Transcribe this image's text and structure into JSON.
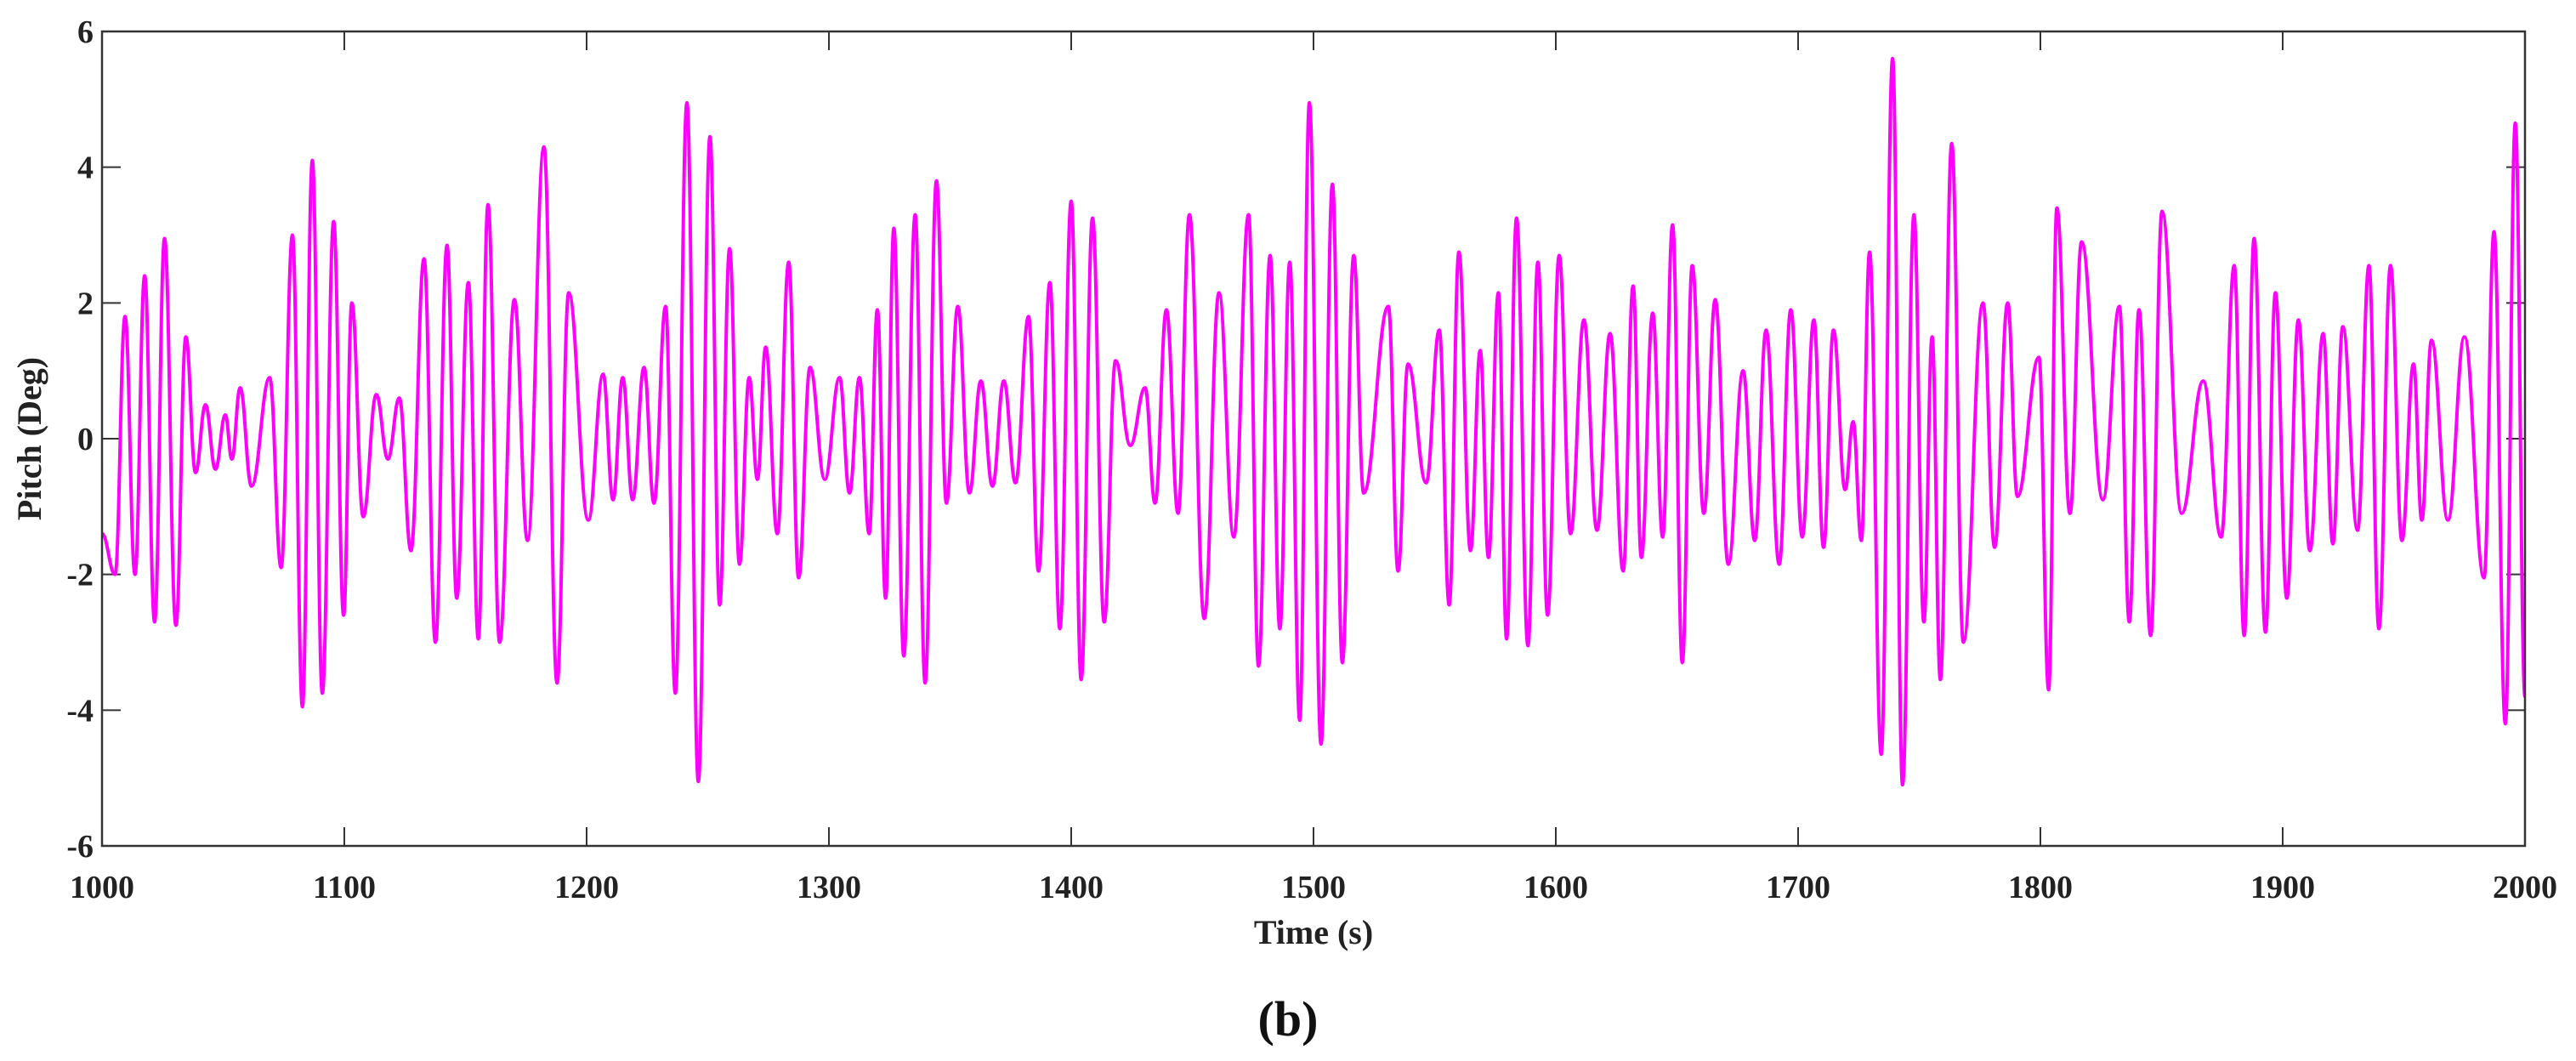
{
  "chart_data": {
    "type": "line",
    "xlabel": "Time (s)",
    "ylabel": "Pitch (Deg)",
    "caption": "(b)",
    "color": "#ff00ff",
    "xlim": [
      1000,
      2000
    ],
    "ylim": [
      -6,
      6
    ],
    "xticks": [
      1000,
      1100,
      1200,
      1300,
      1400,
      1500,
      1600,
      1700,
      1800,
      1900,
      2000
    ],
    "yticks": [
      -6,
      -4,
      -2,
      0,
      2,
      4,
      6
    ],
    "x": [
      1000,
      1005.4,
      1009.5,
      1013.6,
      1017.6,
      1021.7,
      1025.8,
      1030.5,
      1034.6,
      1038.6,
      1042.7,
      1046.8,
      1050.9,
      1053.6,
      1057,
      1061.7,
      1069.2,
      1073.9,
      1078.6,
      1082.7,
      1086.8,
      1090.9,
      1095.6,
      1099.7,
      1103.1,
      1107.8,
      1113.2,
      1118,
      1122.7,
      1127.5,
      1132.9,
      1137.6,
      1142.4,
      1146.4,
      1151.2,
      1155.3,
      1159.3,
      1164.1,
      1170.2,
      1175.6,
      1182.4,
      1187.8,
      1192.6,
      1200.7,
      1206.8,
      1210.9,
      1214.9,
      1219,
      1223.7,
      1227.8,
      1232.6,
      1236.6,
      1241.4,
      1246.1,
      1250.9,
      1254.9,
      1259,
      1263.1,
      1267.1,
      1270.5,
      1273.9,
      1278.7,
      1283.4,
      1287.5,
      1292.2,
      1298.3,
      1304.4,
      1308.5,
      1312.6,
      1316.6,
      1320,
      1323.4,
      1326.8,
      1330.9,
      1335.6,
      1339.7,
      1344.4,
      1348.5,
      1353.2,
      1358,
      1362.7,
      1367.5,
      1372.2,
      1377,
      1382.4,
      1386.5,
      1391.2,
      1395.3,
      1400,
      1404.1,
      1408.8,
      1413.6,
      1418.3,
      1424.4,
      1430.5,
      1434.6,
      1439.3,
      1444.1,
      1448.8,
      1454.9,
      1461,
      1467.1,
      1473.2,
      1477.3,
      1482.1,
      1486.1,
      1490.2,
      1494.3,
      1498.3,
      1503.1,
      1507.8,
      1511.9,
      1516.6,
      1520.7,
      1530.9,
      1534.9,
      1539,
      1546.5,
      1551.9,
      1556,
      1560,
      1564.8,
      1568.8,
      1572.2,
      1576.3,
      1579.7,
      1583.8,
      1588.5,
      1592.6,
      1596.6,
      1601.4,
      1606.1,
      1611.6,
      1617,
      1622.4,
      1627.8,
      1631.9,
      1635.3,
      1640,
      1644.1,
      1648.2,
      1652.2,
      1656.3,
      1661.1,
      1665.8,
      1671.2,
      1677.3,
      1682.1,
      1686.8,
      1692.2,
      1697,
      1701.7,
      1706.5,
      1710.5,
      1714.6,
      1719.4,
      1722.7,
      1726.1,
      1729.5,
      1734.3,
      1739,
      1743.1,
      1747.8,
      1751.9,
      1755.3,
      1758.7,
      1763.4,
      1768.2,
      1776.3,
      1781.1,
      1786.5,
      1790.5,
      1799.4,
      1803.4,
      1806.8,
      1812.2,
      1817,
      1825.8,
      1832.6,
      1836.7,
      1840.7,
      1845.5,
      1850.2,
      1858.3,
      1867.2,
      1874.6,
      1880,
      1884.1,
      1888.2,
      1892.9,
      1897,
      1901.7,
      1906.5,
      1911.2,
      1916.7,
      1920.7,
      1924.8,
      1930.9,
      1935.6,
      1939.7,
      1944.5,
      1949.2,
      1954,
      1957.4,
      1961.4,
      1968.2,
      1975,
      1983.1,
      1987.2,
      1991.9,
      1996,
      2000
    ],
    "values": [
      -1.4,
      -2.0,
      1.8,
      -2.0,
      2.4,
      -2.7,
      2.95,
      -2.75,
      1.5,
      -0.5,
      0.5,
      -0.45,
      0.35,
      -0.3,
      0.75,
      -0.7,
      0.9,
      -1.9,
      3.0,
      -3.95,
      4.1,
      -3.75,
      3.2,
      -2.6,
      2.0,
      -1.15,
      0.65,
      -0.3,
      0.6,
      -1.65,
      2.65,
      -3.0,
      2.85,
      -2.35,
      2.3,
      -2.95,
      3.45,
      -3.0,
      2.05,
      -1.5,
      4.3,
      -3.6,
      2.15,
      -1.2,
      0.95,
      -0.9,
      0.9,
      -0.9,
      1.05,
      -0.95,
      1.95,
      -3.75,
      4.95,
      -5.05,
      4.45,
      -2.45,
      2.8,
      -1.85,
      0.9,
      -0.6,
      1.35,
      -1.4,
      2.6,
      -2.05,
      1.05,
      -0.6,
      0.9,
      -0.8,
      0.9,
      -1.4,
      1.9,
      -2.35,
      3.1,
      -3.2,
      3.3,
      -3.6,
      3.8,
      -0.95,
      1.95,
      -0.8,
      0.85,
      -0.7,
      0.85,
      -0.65,
      1.8,
      -1.95,
      2.3,
      -2.8,
      3.5,
      -3.55,
      3.25,
      -2.7,
      1.15,
      -0.1,
      0.75,
      -0.95,
      1.9,
      -1.1,
      3.3,
      -2.65,
      2.15,
      -1.45,
      3.3,
      -3.35,
      2.7,
      -2.8,
      2.6,
      -4.15,
      4.95,
      -4.5,
      3.75,
      -3.3,
      2.7,
      -0.8,
      1.95,
      -1.95,
      1.1,
      -0.65,
      1.6,
      -2.45,
      2.75,
      -1.65,
      1.3,
      -1.75,
      2.15,
      -2.95,
      3.25,
      -3.05,
      2.6,
      -2.6,
      2.7,
      -1.4,
      1.75,
      -1.35,
      1.55,
      -1.95,
      2.25,
      -1.75,
      1.85,
      -1.45,
      3.15,
      -3.3,
      2.55,
      -1.1,
      2.05,
      -1.85,
      1.0,
      -1.5,
      1.6,
      -1.85,
      1.9,
      -1.45,
      1.75,
      -1.6,
      1.6,
      -0.75,
      0.25,
      -1.5,
      2.75,
      -4.65,
      5.6,
      -5.1,
      3.3,
      -2.7,
      1.5,
      -3.55,
      4.35,
      -3.0,
      2.0,
      -1.6,
      2.0,
      -0.85,
      1.2,
      -3.7,
      3.4,
      -1.1,
      2.9,
      -0.9,
      1.95,
      -2.7,
      1.9,
      -2.9,
      3.35,
      -1.1,
      0.85,
      -1.45,
      2.55,
      -2.9,
      2.95,
      -2.85,
      2.15,
      -2.35,
      1.75,
      -1.65,
      1.55,
      -1.55,
      1.65,
      -1.35,
      2.55,
      -2.8,
      2.55,
      -1.5,
      1.1,
      -1.2,
      1.45,
      -1.2,
      1.5,
      -2.05,
      3.05,
      -4.2,
      4.65,
      -3.8
    ]
  }
}
